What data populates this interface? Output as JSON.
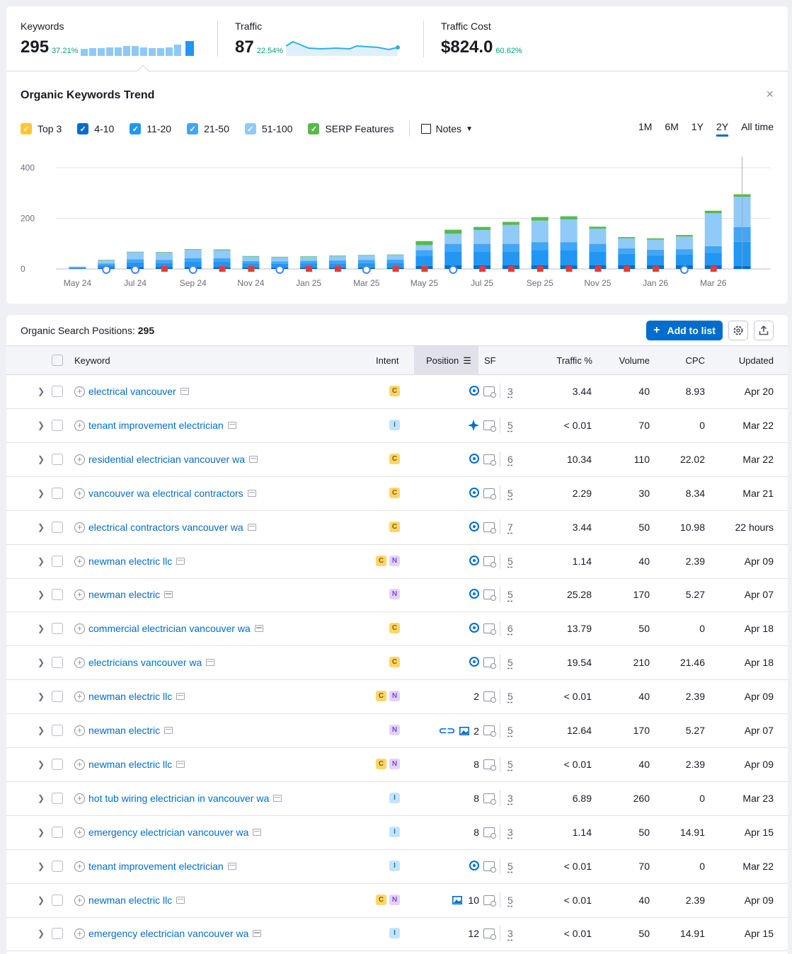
{
  "metrics": [
    {
      "label": "Keywords",
      "value": "295",
      "pct": "37.21%"
    },
    {
      "label": "Traffic",
      "value": "87",
      "pct": "22.54%"
    },
    {
      "label": "Traffic Cost",
      "value": "$824.0",
      "pct": "60.62%"
    }
  ],
  "trend": {
    "title": "Organic Keywords Trend",
    "close": "×",
    "legend": [
      {
        "label": "Top 3",
        "color": "#ffc533"
      },
      {
        "label": "4-10",
        "color": "#006dca"
      },
      {
        "label": "11-20",
        "color": "#2196f3"
      },
      {
        "label": "21-50",
        "color": "#42a5f5"
      },
      {
        "label": "51-100",
        "color": "#90caf9"
      },
      {
        "label": "SERP Features",
        "color": "#59b94a"
      }
    ],
    "notes_label": "Notes",
    "periods": [
      "1M",
      "6M",
      "1Y",
      "2Y",
      "All time"
    ],
    "active_period": "2Y"
  },
  "chart_data": {
    "type": "bar",
    "stacked": true,
    "y_ticks": [
      "400",
      "200",
      "0"
    ],
    "ylim": [
      0,
      400
    ],
    "x_tick_labels": [
      "May 24",
      "Jul 24",
      "Sep 24",
      "Nov 24",
      "Jan 25",
      "Mar 25",
      "May 25",
      "Jul 25",
      "Sep 25",
      "Nov 25",
      "Jan 26",
      "Mar 26"
    ],
    "series_colors": {
      "4-10": "#006dca",
      "11-20": "#2196f3",
      "21-50": "#42a5f5",
      "51-100": "#90caf9",
      "SERP Features": "#59b94a"
    },
    "categories": [
      "May 24",
      "Jun 24",
      "Jul 24",
      "Aug 24",
      "Sep 24",
      "Oct 24",
      "Nov 24",
      "Dec 24",
      "Jan 25",
      "Feb 25",
      "Mar 25",
      "Apr 25",
      "May 25",
      "Jun 25",
      "Jul 25",
      "Aug 25",
      "Sep 25",
      "Oct 25",
      "Nov 25",
      "Dec 25",
      "Jan 26",
      "Feb 26",
      "Mar 26",
      "Apr 26"
    ],
    "series": [
      {
        "name": "4-10",
        "values": [
          2,
          5,
          8,
          7,
          8,
          8,
          6,
          6,
          6,
          6,
          6,
          6,
          12,
          14,
          14,
          14,
          14,
          14,
          14,
          14,
          14,
          14,
          14,
          12
        ]
      },
      {
        "name": "11-20",
        "values": [
          3,
          10,
          18,
          16,
          20,
          20,
          15,
          14,
          15,
          16,
          17,
          18,
          40,
          55,
          55,
          55,
          60,
          60,
          55,
          45,
          40,
          42,
          50,
          95
        ]
      },
      {
        "name": "21-50",
        "values": [
          2,
          7,
          12,
          12,
          14,
          14,
          10,
          10,
          11,
          12,
          12,
          13,
          22,
          30,
          30,
          30,
          32,
          32,
          30,
          22,
          22,
          22,
          26,
          58
        ]
      },
      {
        "name": "51-100",
        "values": [
          2,
          12,
          28,
          30,
          33,
          32,
          18,
          16,
          16,
          17,
          18,
          18,
          20,
          40,
          55,
          75,
          85,
          90,
          60,
          40,
          40,
          50,
          130,
          120
        ]
      },
      {
        "name": "SERP Features",
        "values": [
          0,
          2,
          2,
          2,
          3,
          3,
          2,
          2,
          2,
          2,
          2,
          2,
          16,
          16,
          12,
          12,
          14,
          12,
          8,
          5,
          5,
          6,
          10,
          10
        ]
      }
    ],
    "serp_markers": [
      "google",
      "google",
      "flag",
      "google",
      "flag",
      "flag",
      "google",
      "flag",
      "flag",
      "google",
      "flag",
      "flag",
      "google",
      "flag",
      "flag",
      "flag",
      "flag",
      "flag",
      "flag",
      "flag",
      "google",
      "flag"
    ]
  },
  "table": {
    "title_prefix": "Organic Search Positions:",
    "title_count": "295",
    "add_button": "Add to list",
    "headers": {
      "keyword": "Keyword",
      "intent": "Intent",
      "position": "Position",
      "sf": "SF",
      "traffic": "Traffic %",
      "volume": "Volume",
      "cpc": "CPC",
      "updated": "Updated"
    },
    "rows": [
      {
        "keyword": "electrical vancouver",
        "intents": [
          "C"
        ],
        "pos_icon": "pin",
        "position": "",
        "sf": "3",
        "traffic": "3.44",
        "volume": "40",
        "cpc": "8.93",
        "updated": "Apr 20"
      },
      {
        "keyword": "tenant improvement electrician",
        "intents": [
          "I"
        ],
        "pos_icon": "star",
        "position": "",
        "sf": "5",
        "traffic": "< 0.01",
        "volume": "70",
        "cpc": "0",
        "updated": "Mar 22"
      },
      {
        "keyword": "residential electrician vancouver wa",
        "intents": [
          "C"
        ],
        "pos_icon": "pin",
        "position": "",
        "sf": "6",
        "traffic": "10.34",
        "volume": "110",
        "cpc": "22.02",
        "updated": "Mar 22"
      },
      {
        "keyword": "vancouver wa electrical contractors",
        "intents": [
          "C"
        ],
        "pos_icon": "pin",
        "position": "",
        "sf": "5",
        "traffic": "2.29",
        "volume": "30",
        "cpc": "8.34",
        "updated": "Mar 21"
      },
      {
        "keyword": "electrical contractors vancouver wa",
        "intents": [
          "C"
        ],
        "pos_icon": "pin",
        "position": "",
        "sf": "7",
        "traffic": "3.44",
        "volume": "50",
        "cpc": "10.98",
        "updated": "22 hours"
      },
      {
        "keyword": "newman electric llc",
        "intents": [
          "C",
          "N"
        ],
        "pos_icon": "pin",
        "position": "",
        "sf": "5",
        "traffic": "1.14",
        "volume": "40",
        "cpc": "2.39",
        "updated": "Apr 09"
      },
      {
        "keyword": "newman electric",
        "intents": [
          "N"
        ],
        "pos_icon": "pin",
        "position": "",
        "sf": "5",
        "traffic": "25.28",
        "volume": "170",
        "cpc": "5.27",
        "updated": "Apr 07"
      },
      {
        "keyword": "commercial electrician vancouver wa",
        "intents": [
          "C"
        ],
        "pos_icon": "pin",
        "position": "",
        "sf": "6",
        "traffic": "13.79",
        "volume": "50",
        "cpc": "0",
        "updated": "Apr 18"
      },
      {
        "keyword": "electricians vancouver wa",
        "intents": [
          "C"
        ],
        "pos_icon": "pin",
        "position": "",
        "sf": "5",
        "traffic": "19.54",
        "volume": "210",
        "cpc": "21.46",
        "updated": "Apr 18"
      },
      {
        "keyword": "newman electric llc",
        "intents": [
          "C",
          "N"
        ],
        "pos_icon": "",
        "position": "2",
        "sf": "5",
        "traffic": "< 0.01",
        "volume": "40",
        "cpc": "2.39",
        "updated": "Apr 09"
      },
      {
        "keyword": "newman electric",
        "intents": [
          "N"
        ],
        "pos_icon": "link-image",
        "position": "2",
        "sf": "5",
        "traffic": "12.64",
        "volume": "170",
        "cpc": "5.27",
        "updated": "Apr 07"
      },
      {
        "keyword": "newman electric llc",
        "intents": [
          "C",
          "N"
        ],
        "pos_icon": "",
        "position": "8",
        "sf": "5",
        "traffic": "< 0.01",
        "volume": "40",
        "cpc": "2.39",
        "updated": "Apr 09"
      },
      {
        "keyword": "hot tub wiring electrician in vancouver wa",
        "intents": [
          "I"
        ],
        "pos_icon": "",
        "position": "8",
        "sf": "3",
        "traffic": "6.89",
        "volume": "260",
        "cpc": "0",
        "updated": "Mar 23"
      },
      {
        "keyword": "emergency electrician vancouver wa",
        "intents": [
          "I"
        ],
        "pos_icon": "",
        "position": "8",
        "sf": "3",
        "traffic": "1.14",
        "volume": "50",
        "cpc": "14.91",
        "updated": "Apr 15"
      },
      {
        "keyword": "tenant improvement electrician",
        "intents": [
          "I"
        ],
        "pos_icon": "pin",
        "position": "",
        "sf": "5",
        "traffic": "< 0.01",
        "volume": "70",
        "cpc": "0",
        "updated": "Mar 22"
      },
      {
        "keyword": "newman electric llc",
        "intents": [
          "C",
          "N"
        ],
        "pos_icon": "image",
        "position": "10",
        "sf": "5",
        "traffic": "< 0.01",
        "volume": "40",
        "cpc": "2.39",
        "updated": "Apr 09"
      },
      {
        "keyword": "emergency electrician vancouver wa",
        "intents": [
          "I"
        ],
        "pos_icon": "",
        "position": "12",
        "sf": "3",
        "traffic": "< 0.01",
        "volume": "50",
        "cpc": "14.91",
        "updated": "Apr 15"
      }
    ]
  }
}
